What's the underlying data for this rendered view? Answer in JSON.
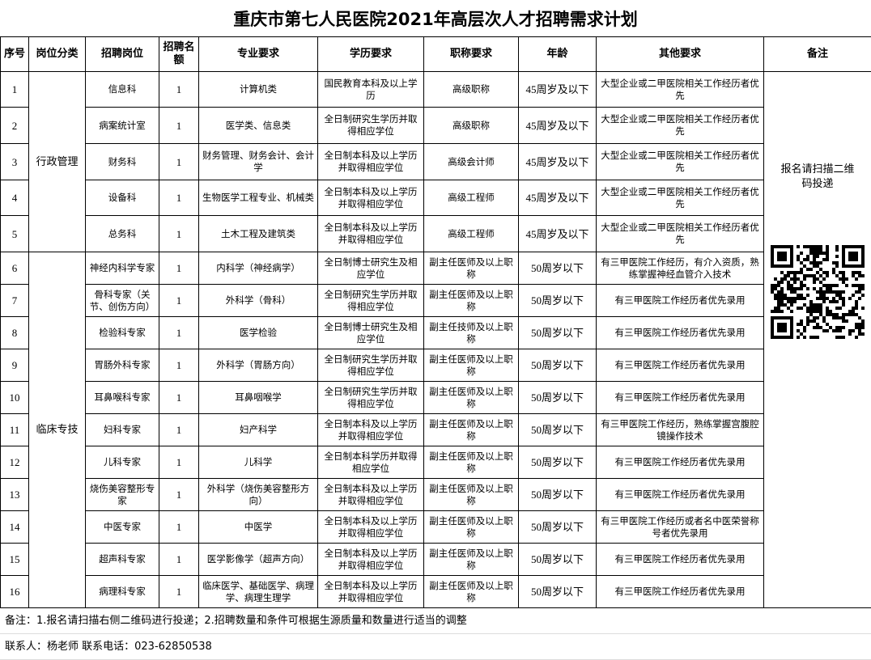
{
  "title": "重庆市第七人民医院2021年高层次人才招聘需求计划",
  "table": {
    "headers": [
      "序号",
      "岗位分类",
      "招聘岗位",
      "招聘名额",
      "专业要求",
      "学历要求",
      "职称要求",
      "年龄",
      "其他要求",
      "备注"
    ],
    "remark": "报名请扫描二维码投递",
    "groups": [
      {
        "label": "行政管理",
        "rows": [
          [
            1,
            "信息科",
            1,
            "计算机类",
            "国民教育本科及以上学历",
            "高级职称",
            "45周岁及以下",
            "大型企业或二甲医院相关工作经历者优先"
          ],
          [
            2,
            "病案统计室",
            1,
            "医学类、信息类",
            "全日制研究生学历并取得相应学位",
            "高级职称",
            "45周岁及以下",
            "大型企业或二甲医院相关工作经历者优先"
          ],
          [
            3,
            "财务科",
            1,
            "财务管理、财务会计、会计学",
            "全日制本科及以上学历并取得相应学位",
            "高级会计师",
            "45周岁及以下",
            "大型企业或二甲医院相关工作经历者优先"
          ],
          [
            4,
            "设备科",
            1,
            "生物医学工程专业、机械类",
            "全日制本科及以上学历并取得相应学位",
            "高级工程师",
            "45周岁及以下",
            "大型企业或二甲医院相关工作经历者优先"
          ],
          [
            5,
            "总务科",
            1,
            "土木工程及建筑类",
            "全日制本科及以上学历并取得相应学位",
            "高级工程师",
            "45周岁及以下",
            "大型企业或二甲医院相关工作经历者优先"
          ]
        ]
      },
      {
        "label": "临床专技",
        "rows": [
          [
            6,
            "神经内科学专家",
            1,
            "内科学（神经病学）",
            "全日制博士研究生及相应学位",
            "副主任医师及以上职称",
            "50周岁以下",
            "有三甲医院工作经历，有介入资质，熟练掌握神经血管介入技术"
          ],
          [
            7,
            "骨科专家（关节、创伤方向）",
            1,
            "外科学（骨科）",
            "全日制研究生学历并取得相应学位",
            "副主任医师及以上职称",
            "50周岁以下",
            "有三甲医院工作经历者优先录用"
          ],
          [
            8,
            "检验科专家",
            1,
            "医学检验",
            "全日制博士研究生及相应学位",
            "副主任技师及以上职称",
            "50周岁以下",
            "有三甲医院工作经历者优先录用"
          ],
          [
            9,
            "胃肠外科专家",
            1,
            "外科学（胃肠方向）",
            "全日制研究生学历并取得相应学位",
            "副主任医师及以上职称",
            "50周岁以下",
            "有三甲医院工作经历者优先录用"
          ],
          [
            10,
            "耳鼻喉科专家",
            1,
            "耳鼻咽喉学",
            "全日制研究生学历并取得相应学位",
            "副主任医师及以上职称",
            "50周岁以下",
            "有三甲医院工作经历者优先录用"
          ],
          [
            11,
            "妇科专家",
            1,
            "妇产科学",
            "全日制本科及以上学历并取得相应学位",
            "副主任医师及以上职称",
            "50周岁以下",
            "有三甲医院工作经历，熟练掌握宫腹腔镜操作技术"
          ],
          [
            12,
            "儿科专家",
            1,
            "儿科学",
            "全日制本科学历并取得相应学位",
            "副主任医师及以上职称",
            "50周岁以下",
            "有三甲医院工作经历者优先录用"
          ],
          [
            13,
            "烧伤美容整形专家",
            1,
            "外科学（烧伤美容整形方向）",
            "全日制本科及以上学历并取得相应学位",
            "副主任医师及以上职称",
            "50周岁以下",
            "有三甲医院工作经历者优先录用"
          ],
          [
            14,
            "中医专家",
            1,
            "中医学",
            "全日制本科及以上学历并取得相应学位",
            "副主任医师及以上职称",
            "50周岁以下",
            "有三甲医院工作经历或者名中医荣誉称号者优先录用"
          ],
          [
            15,
            "超声科专家",
            1,
            "医学影像学（超声方向）",
            "全日制本科及以上学历并取得相应学位",
            "副主任医师及以上职称",
            "50周岁以下",
            "有三甲医院工作经历者优先录用"
          ],
          [
            16,
            "病理科专家",
            1,
            "临床医学、基础医学、病理学、病理生理学",
            "全日制本科及以上学历并取得相应学位",
            "副主任医师及以上职称",
            "50周岁以下",
            "有三甲医院工作经历者优先录用"
          ]
        ]
      }
    ]
  },
  "notes": [
    "备注：1.报名请扫描右侧二维码进行投递；2.招聘数量和条件可根据生源质量和数量进行适当的调整",
    "联系人：杨老师 联系电话：023-62850538"
  ]
}
